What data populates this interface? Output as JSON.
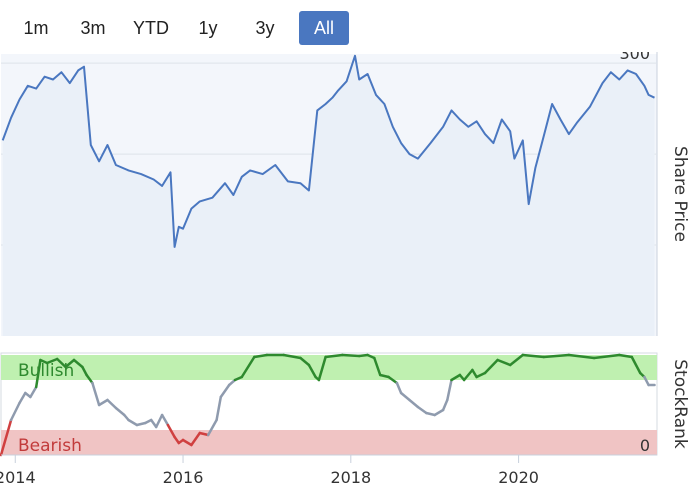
{
  "range_selector": {
    "buttons": [
      "1m",
      "3m",
      "YTD",
      "1y",
      "3y",
      "All"
    ],
    "active": "All",
    "active_color": "#4a77c0"
  },
  "chart_data": [
    {
      "type": "line",
      "ylabel": "Share Price",
      "yticks": [
        0,
        100,
        200,
        300
      ],
      "ylim": [
        0,
        310
      ],
      "xlim": [
        2013.83,
        2021.65
      ],
      "grid": true,
      "line_color": "#4a77c0",
      "fill_color": "#f3f6fb",
      "x": [
        2013.85,
        2013.95,
        2014.05,
        2014.15,
        2014.25,
        2014.35,
        2014.45,
        2014.55,
        2014.65,
        2014.75,
        2014.82,
        2014.9,
        2015.0,
        2015.1,
        2015.2,
        2015.35,
        2015.5,
        2015.65,
        2015.75,
        2015.85,
        2015.9,
        2015.95,
        2016.0,
        2016.1,
        2016.2,
        2016.35,
        2016.5,
        2016.6,
        2016.7,
        2016.8,
        2016.95,
        2017.1,
        2017.25,
        2017.4,
        2017.5,
        2017.6,
        2017.7,
        2017.78,
        2017.85,
        2017.95,
        2018.05,
        2018.1,
        2018.2,
        2018.3,
        2018.4,
        2018.5,
        2018.6,
        2018.7,
        2018.8,
        2018.95,
        2019.1,
        2019.2,
        2019.3,
        2019.4,
        2019.5,
        2019.6,
        2019.7,
        2019.8,
        2019.9,
        2019.95,
        2020.0,
        2020.05,
        2020.12,
        2020.2,
        2020.3,
        2020.4,
        2020.5,
        2020.6,
        2020.7,
        2020.85,
        2021.0,
        2021.1,
        2021.2,
        2021.3,
        2021.4,
        2021.5,
        2021.55,
        2021.62
      ],
      "y": [
        215,
        240,
        260,
        275,
        272,
        285,
        282,
        290,
        278,
        292,
        296,
        210,
        192,
        210,
        188,
        182,
        178,
        172,
        165,
        180,
        98,
        120,
        118,
        140,
        148,
        152,
        168,
        155,
        175,
        182,
        178,
        188,
        170,
        168,
        160,
        248,
        255,
        262,
        270,
        280,
        308,
        282,
        288,
        265,
        255,
        230,
        212,
        200,
        195,
        212,
        230,
        248,
        238,
        230,
        236,
        222,
        212,
        238,
        225,
        195,
        205,
        215,
        145,
        185,
        220,
        255,
        238,
        222,
        235,
        252,
        278,
        290,
        282,
        292,
        288,
        275,
        265,
        262
      ]
    },
    {
      "type": "line",
      "ylabel": "StockRank",
      "bands": [
        {
          "label": "Bullish",
          "color": "#bff0b0",
          "range": [
            75,
            100
          ]
        },
        {
          "label": "Bearish",
          "color": "#f0c4c4",
          "range": [
            0,
            25
          ]
        }
      ],
      "yticks": [
        0
      ],
      "ylim": [
        0,
        100
      ],
      "xlim": [
        2013.83,
        2021.65
      ],
      "xticks": [
        "2014",
        "2016",
        "2018",
        "2020"
      ],
      "line_color": "#8f9bae",
      "bullish_line_color": "#2e8a2e",
      "bearish_line_color": "#d04040",
      "x": [
        2013.83,
        2013.95,
        2014.05,
        2014.12,
        2014.18,
        2014.25,
        2014.3,
        2014.38,
        2014.5,
        2014.6,
        2014.7,
        2014.8,
        2014.85,
        2014.92,
        2015.0,
        2015.1,
        2015.2,
        2015.3,
        2015.35,
        2015.45,
        2015.55,
        2015.62,
        2015.68,
        2015.75,
        2015.82,
        2015.9,
        2015.95,
        2016.0,
        2016.1,
        2016.2,
        2016.3,
        2016.4,
        2016.45,
        2016.55,
        2016.62,
        2016.7,
        2016.85,
        2017.0,
        2017.2,
        2017.4,
        2017.5,
        2017.58,
        2017.62,
        2017.7,
        2017.9,
        2018.1,
        2018.2,
        2018.28,
        2018.35,
        2018.45,
        2018.55,
        2018.6,
        2018.7,
        2018.8,
        2018.9,
        2019.0,
        2019.1,
        2019.15,
        2019.2,
        2019.3,
        2019.35,
        2019.45,
        2019.5,
        2019.6,
        2019.75,
        2019.9,
        2020.05,
        2020.3,
        2020.6,
        2020.9,
        2021.2,
        2021.35,
        2021.45,
        2021.5,
        2021.55,
        2021.62
      ],
      "y": [
        0,
        35,
        52,
        62,
        58,
        68,
        95,
        92,
        96,
        88,
        95,
        88,
        80,
        72,
        50,
        55,
        47,
        40,
        35,
        30,
        32,
        35,
        28,
        40,
        30,
        18,
        12,
        15,
        10,
        22,
        20,
        35,
        58,
        70,
        75,
        78,
        98,
        100,
        100,
        97,
        90,
        78,
        75,
        98,
        100,
        99,
        100,
        97,
        80,
        78,
        72,
        62,
        55,
        48,
        42,
        40,
        45,
        55,
        75,
        80,
        75,
        85,
        78,
        82,
        95,
        90,
        100,
        98,
        100,
        97,
        100,
        98,
        82,
        78,
        70,
        70
      ]
    }
  ]
}
